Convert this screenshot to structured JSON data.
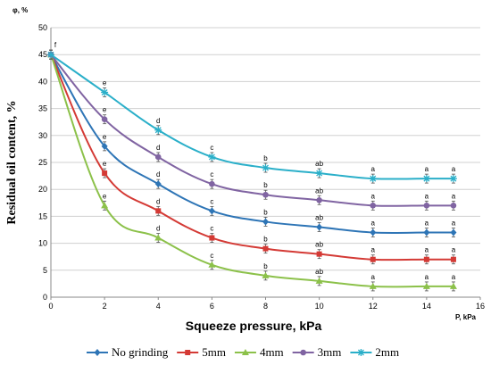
{
  "chart_data": {
    "type": "line",
    "xlabel": "Squeeze pressure, kPa",
    "ylabel": "Residual oil content, %",
    "x_unit": "P, kPa",
    "y_unit": "φ, %",
    "xlim": [
      0,
      16
    ],
    "ylim": [
      0,
      50
    ],
    "x_ticks": [
      0,
      2,
      4,
      6,
      8,
      10,
      12,
      14,
      16
    ],
    "y_ticks": [
      0,
      5,
      10,
      15,
      20,
      25,
      30,
      35,
      40,
      45,
      50
    ],
    "grid": "horizontal",
    "legend_position": "bottom",
    "x": [
      0,
      2,
      4,
      6,
      8,
      10,
      12,
      14,
      15
    ],
    "series": [
      {
        "name": "No grinding",
        "color": "#2E75B6",
        "marker": "diamond",
        "values": [
          45,
          28,
          21,
          16,
          14,
          13,
          12,
          12,
          12
        ]
      },
      {
        "name": "5mm",
        "color": "#D43A35",
        "marker": "square",
        "values": [
          45,
          23,
          16,
          11,
          9,
          8,
          7,
          7,
          7
        ]
      },
      {
        "name": "4mm",
        "color": "#8CC14A",
        "marker": "triangle",
        "values": [
          45,
          17,
          11,
          6,
          4,
          3,
          2,
          2,
          2
        ]
      },
      {
        "name": "3mm",
        "color": "#8064A2",
        "marker": "circle",
        "values": [
          45,
          33,
          26,
          21,
          19,
          18,
          17,
          17,
          17
        ]
      },
      {
        "name": "2mm",
        "color": "#2AAFC9",
        "marker": "star",
        "values": [
          45,
          38,
          31,
          26,
          24,
          23,
          22,
          22,
          22
        ]
      }
    ],
    "annotations": [
      {
        "x": 0,
        "y": 45,
        "text": "f"
      },
      {
        "x": 2,
        "y": 38,
        "text": "e"
      },
      {
        "x": 2,
        "y": 33,
        "text": "e"
      },
      {
        "x": 2,
        "y": 28,
        "text": "e"
      },
      {
        "x": 2,
        "y": 23,
        "text": "e"
      },
      {
        "x": 2,
        "y": 17,
        "text": "e"
      },
      {
        "x": 4,
        "y": 31,
        "text": "d"
      },
      {
        "x": 4,
        "y": 26,
        "text": "d"
      },
      {
        "x": 4,
        "y": 21,
        "text": "d"
      },
      {
        "x": 4,
        "y": 16,
        "text": "d"
      },
      {
        "x": 4,
        "y": 11,
        "text": "d"
      },
      {
        "x": 6,
        "y": 26,
        "text": "c"
      },
      {
        "x": 6,
        "y": 21,
        "text": "c"
      },
      {
        "x": 6,
        "y": 16,
        "text": "c"
      },
      {
        "x": 6,
        "y": 11,
        "text": "c"
      },
      {
        "x": 6,
        "y": 6,
        "text": "c"
      },
      {
        "x": 8,
        "y": 24,
        "text": "b"
      },
      {
        "x": 8,
        "y": 19,
        "text": "b"
      },
      {
        "x": 8,
        "y": 14,
        "text": "b"
      },
      {
        "x": 8,
        "y": 9,
        "text": "b"
      },
      {
        "x": 8,
        "y": 4,
        "text": "b"
      },
      {
        "x": 10,
        "y": 23,
        "text": "ab"
      },
      {
        "x": 10,
        "y": 18,
        "text": "ab"
      },
      {
        "x": 10,
        "y": 13,
        "text": "ab"
      },
      {
        "x": 10,
        "y": 8,
        "text": "ab"
      },
      {
        "x": 10,
        "y": 3,
        "text": "ab"
      },
      {
        "x": 12,
        "y": 22,
        "text": "a"
      },
      {
        "x": 12,
        "y": 17,
        "text": "a"
      },
      {
        "x": 12,
        "y": 12,
        "text": "a"
      },
      {
        "x": 12,
        "y": 7,
        "text": "a"
      },
      {
        "x": 12,
        "y": 2,
        "text": "a"
      },
      {
        "x": 14,
        "y": 22,
        "text": "a"
      },
      {
        "x": 14,
        "y": 17,
        "text": "a"
      },
      {
        "x": 14,
        "y": 12,
        "text": "a"
      },
      {
        "x": 14,
        "y": 7,
        "text": "a"
      },
      {
        "x": 14,
        "y": 2,
        "text": "a"
      },
      {
        "x": 15,
        "y": 22,
        "text": "a"
      },
      {
        "x": 15,
        "y": 17,
        "text": "a"
      },
      {
        "x": 15,
        "y": 12,
        "text": "a"
      },
      {
        "x": 15,
        "y": 7,
        "text": "a"
      },
      {
        "x": 15,
        "y": 2,
        "text": "a"
      }
    ]
  }
}
